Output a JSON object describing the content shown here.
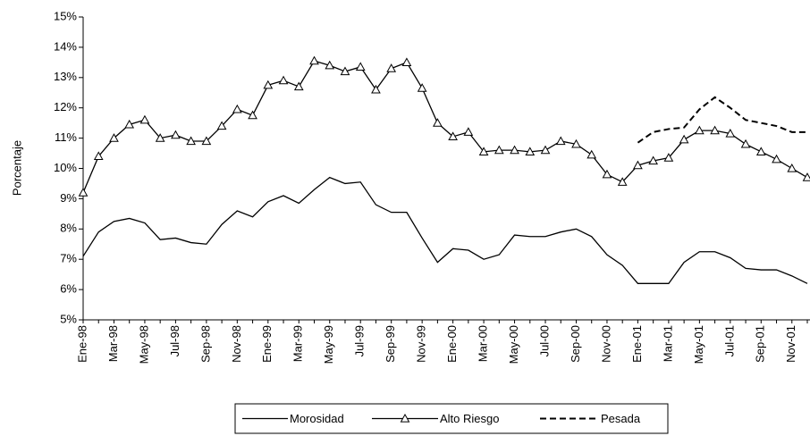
{
  "chart_data": {
    "type": "line",
    "y_label": "Porcentaje",
    "categories": [
      "Ene-98",
      null,
      "Mar-98",
      null,
      "May-98",
      null,
      "Jul-98",
      null,
      "Sep-98",
      null,
      "Nov-98",
      null,
      "Ene-99",
      null,
      "Mar-99",
      null,
      "May-99",
      null,
      "Jul-99",
      null,
      "Sep-99",
      null,
      "Nov-99",
      null,
      "Ene-00",
      null,
      "Mar-00",
      null,
      "May-00",
      null,
      "Jul-00",
      null,
      "Sep-00",
      null,
      "Nov-00",
      null,
      "Ene-01",
      null,
      "Mar-01",
      null,
      "May-01",
      null,
      "Jul-01",
      null,
      "Sep-01",
      null,
      "Nov-01",
      null
    ],
    "series": [
      {
        "name": "Morosidad",
        "color": "#000000",
        "style": "solid",
        "marker": "none",
        "values": [
          7.1,
          7.9,
          8.25,
          8.35,
          8.2,
          7.65,
          7.7,
          7.55,
          7.5,
          8.15,
          8.6,
          8.4,
          8.9,
          9.1,
          8.85,
          9.3,
          9.7,
          9.5,
          9.55,
          8.8,
          8.55,
          8.55,
          7.7,
          6.9,
          7.35,
          7.3,
          7.0,
          7.15,
          7.8,
          7.75,
          7.75,
          7.9,
          8.0,
          7.75,
          7.15,
          6.8,
          6.2,
          6.2,
          6.2,
          6.9,
          7.25,
          7.25,
          7.05,
          6.7,
          6.65,
          6.65,
          6.45,
          6.2
        ]
      },
      {
        "name": "Alto Riesgo",
        "color": "#000000",
        "style": "solid",
        "marker": "triangle",
        "values": [
          9.2,
          10.4,
          11.0,
          11.45,
          11.6,
          11.0,
          11.1,
          10.9,
          10.9,
          11.4,
          11.95,
          11.75,
          12.75,
          12.9,
          12.7,
          13.55,
          13.4,
          13.2,
          13.35,
          12.6,
          13.3,
          13.5,
          12.65,
          11.5,
          11.05,
          11.2,
          10.55,
          10.6,
          10.6,
          10.55,
          10.6,
          10.9,
          10.8,
          10.45,
          9.8,
          9.55,
          10.1,
          10.25,
          10.35,
          10.95,
          11.25,
          11.25,
          11.15,
          10.8,
          10.55,
          10.3,
          10.0,
          9.7
        ]
      },
      {
        "name": "Pesada",
        "color": "#000000",
        "style": "dashed",
        "marker": "none",
        "values": [
          null,
          null,
          null,
          null,
          null,
          null,
          null,
          null,
          null,
          null,
          null,
          null,
          null,
          null,
          null,
          null,
          null,
          null,
          null,
          null,
          null,
          null,
          null,
          null,
          null,
          null,
          null,
          null,
          null,
          null,
          null,
          null,
          null,
          null,
          null,
          null,
          10.85,
          11.2,
          11.3,
          11.35,
          11.95,
          12.35,
          12.0,
          11.6,
          11.5,
          11.4,
          11.2,
          11.2
        ]
      }
    ],
    "ylim": [
      5,
      15
    ],
    "yticks": [
      {
        "value": 5,
        "label": "5%"
      },
      {
        "value": 6,
        "label": "6%"
      },
      {
        "value": 7,
        "label": "7%"
      },
      {
        "value": 8,
        "label": "8%"
      },
      {
        "value": 9,
        "label": "9%"
      },
      {
        "value": 10,
        "label": "10%"
      },
      {
        "value": 11,
        "label": "11%"
      },
      {
        "value": 12,
        "label": "12%"
      },
      {
        "value": 13,
        "label": "13%"
      },
      {
        "value": 14,
        "label": "14%"
      },
      {
        "value": 15,
        "label": "15%"
      }
    ],
    "grid": false,
    "legend": "bottom"
  }
}
